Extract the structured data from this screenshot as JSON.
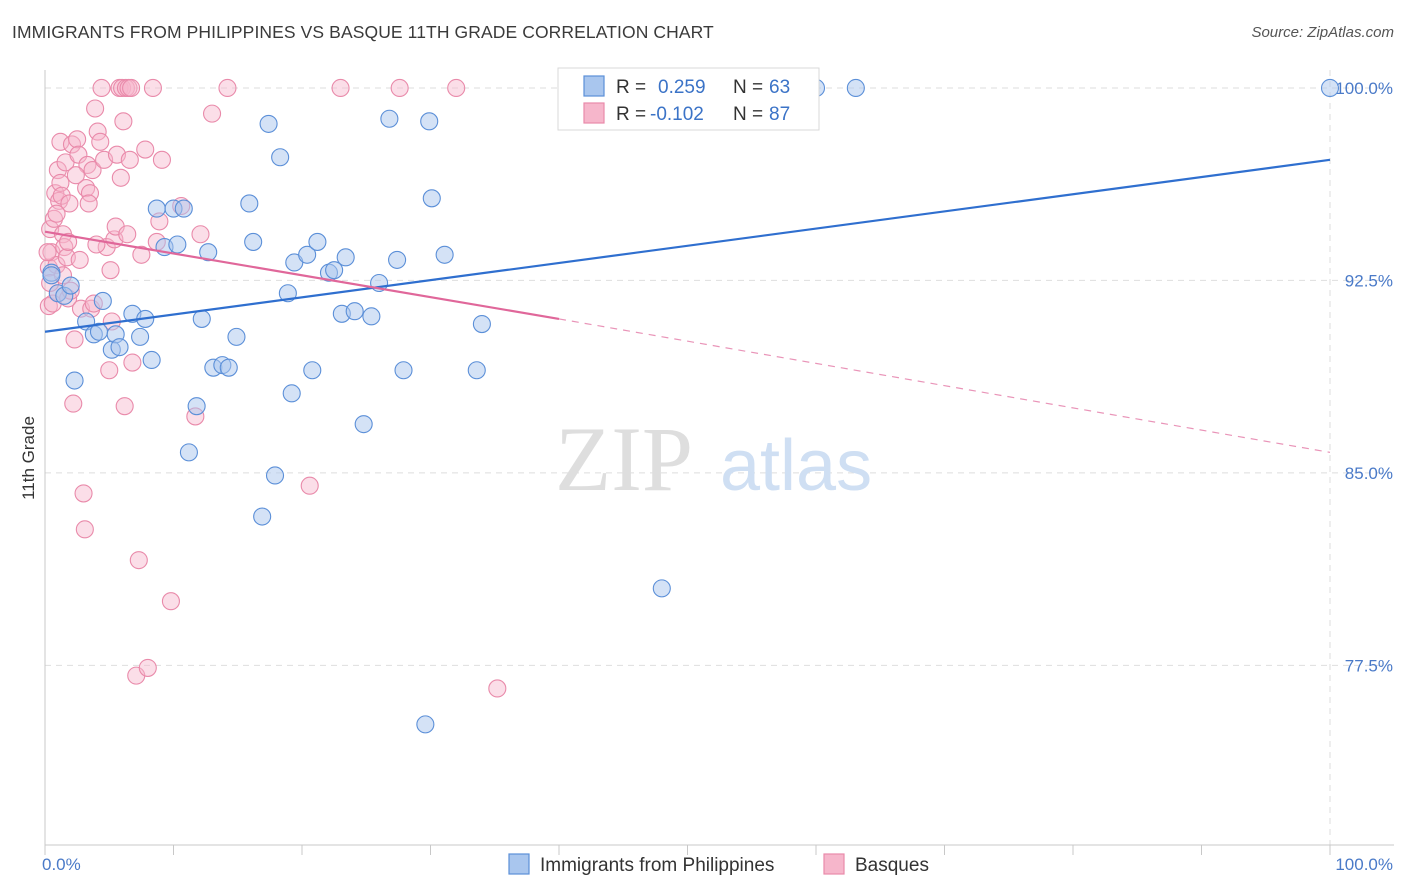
{
  "title": "IMMIGRANTS FROM PHILIPPINES VS BASQUE 11TH GRADE CORRELATION CHART",
  "source": "Source: ZipAtlas.com",
  "watermark": {
    "zip": "ZIP",
    "atlas": "atlas"
  },
  "colors": {
    "blue_fill": "#a9c6ee",
    "blue_stroke": "#5b8fd8",
    "blue_line": "#2f6fcf",
    "pink_fill": "#f6b6cb",
    "pink_stroke": "#e98aaa",
    "pink_line": "#e0679a",
    "grid": "#dedede",
    "tick_text": "#4a7ac8"
  },
  "legend": {
    "rows": [
      {
        "r_label": "R =",
        "r_value": "0.259",
        "n_label": "N =",
        "n_value": "63"
      },
      {
        "r_label": "R =",
        "r_value": "-0.102",
        "n_label": "N =",
        "n_value": "87"
      }
    ]
  },
  "chart_data": {
    "type": "scatter",
    "title": "IMMIGRANTS FROM PHILIPPINES VS BASQUE 11TH GRADE CORRELATION CHART",
    "xlabel": "",
    "ylabel": "11th Grade",
    "xlim": [
      0,
      100
    ],
    "ylim": [
      70.5,
      100.7
    ],
    "x_tick_labels": [
      "0.0%",
      "100.0%"
    ],
    "y_ticks": [
      77.5,
      85.0,
      92.5,
      100.0
    ],
    "y_tick_labels": [
      "77.5%",
      "85.0%",
      "92.5%",
      "100.0%"
    ],
    "grid": true,
    "legend_position": "top-center",
    "series": [
      {
        "name": "Immigrants from Philippines",
        "r": 0.259,
        "n": 63,
        "trend": {
          "x0": 0,
          "y0": 90.5,
          "x1": 100,
          "y1": 97.2
        },
        "points": [
          [
            0.5,
            92.8
          ],
          [
            0.5,
            92.7
          ],
          [
            1.0,
            92.0
          ],
          [
            1.5,
            91.9
          ],
          [
            2.0,
            92.3
          ],
          [
            2.3,
            88.6
          ],
          [
            3.2,
            90.9
          ],
          [
            3.8,
            90.4
          ],
          [
            4.2,
            90.5
          ],
          [
            4.5,
            91.7
          ],
          [
            5.2,
            89.8
          ],
          [
            5.5,
            90.4
          ],
          [
            5.8,
            89.9
          ],
          [
            6.8,
            91.2
          ],
          [
            7.4,
            90.3
          ],
          [
            7.8,
            91.0
          ],
          [
            8.3,
            89.4
          ],
          [
            8.7,
            95.3
          ],
          [
            9.3,
            93.8
          ],
          [
            10.0,
            95.3
          ],
          [
            10.3,
            93.9
          ],
          [
            10.8,
            95.3
          ],
          [
            11.2,
            85.8
          ],
          [
            11.8,
            87.6
          ],
          [
            12.2,
            91.0
          ],
          [
            12.7,
            93.6
          ],
          [
            13.1,
            89.1
          ],
          [
            13.8,
            89.2
          ],
          [
            14.3,
            89.1
          ],
          [
            14.9,
            90.3
          ],
          [
            15.9,
            95.5
          ],
          [
            16.2,
            94.0
          ],
          [
            16.9,
            83.3
          ],
          [
            17.4,
            98.6
          ],
          [
            17.9,
            84.9
          ],
          [
            18.3,
            97.3
          ],
          [
            18.9,
            92.0
          ],
          [
            19.4,
            93.2
          ],
          [
            19.2,
            88.1
          ],
          [
            20.4,
            93.5
          ],
          [
            20.8,
            89.0
          ],
          [
            21.2,
            94.0
          ],
          [
            22.1,
            92.8
          ],
          [
            22.5,
            92.9
          ],
          [
            23.1,
            91.2
          ],
          [
            23.4,
            93.4
          ],
          [
            24.1,
            91.3
          ],
          [
            24.8,
            86.9
          ],
          [
            25.4,
            91.1
          ],
          [
            26.0,
            92.4
          ],
          [
            26.8,
            98.8
          ],
          [
            27.4,
            93.3
          ],
          [
            27.9,
            89.0
          ],
          [
            29.6,
            75.2
          ],
          [
            29.9,
            98.7
          ],
          [
            30.1,
            95.7
          ],
          [
            31.1,
            93.5
          ],
          [
            33.6,
            89.0
          ],
          [
            34.0,
            90.8
          ],
          [
            48.0,
            80.5
          ],
          [
            60.0,
            100.0
          ],
          [
            63.1,
            100.0
          ],
          [
            100.0,
            100.0
          ]
        ]
      },
      {
        "name": "Basques",
        "r": -0.102,
        "n": 87,
        "trend": {
          "x0": 0,
          "y0": 94.4,
          "x1": 40,
          "y1": 91.0,
          "dash_x1": 100,
          "dash_y1": 85.8
        },
        "points": [
          [
            0.3,
            91.5
          ],
          [
            0.3,
            93.0
          ],
          [
            0.4,
            94.5
          ],
          [
            0.5,
            93.6
          ],
          [
            0.6,
            91.6
          ],
          [
            0.7,
            94.9
          ],
          [
            0.8,
            95.9
          ],
          [
            0.9,
            93.1
          ],
          [
            1.0,
            96.8
          ],
          [
            1.0,
            92.0
          ],
          [
            1.1,
            95.6
          ],
          [
            1.2,
            96.3
          ],
          [
            1.2,
            97.9
          ],
          [
            1.3,
            95.8
          ],
          [
            1.4,
            94.3
          ],
          [
            1.5,
            93.8
          ],
          [
            1.6,
            97.1
          ],
          [
            1.7,
            93.4
          ],
          [
            1.8,
            91.8
          ],
          [
            1.9,
            95.5
          ],
          [
            2.0,
            92.1
          ],
          [
            2.1,
            97.8
          ],
          [
            2.2,
            87.7
          ],
          [
            2.3,
            90.2
          ],
          [
            2.5,
            98.0
          ],
          [
            2.6,
            97.4
          ],
          [
            2.7,
            93.3
          ],
          [
            2.8,
            91.4
          ],
          [
            3.0,
            84.2
          ],
          [
            3.1,
            82.8
          ],
          [
            3.2,
            96.1
          ],
          [
            3.3,
            97.0
          ],
          [
            3.5,
            95.9
          ],
          [
            3.6,
            91.4
          ],
          [
            3.7,
            96.8
          ],
          [
            3.8,
            91.6
          ],
          [
            3.9,
            99.2
          ],
          [
            4.1,
            98.3
          ],
          [
            4.3,
            97.9
          ],
          [
            4.4,
            100.0
          ],
          [
            4.6,
            97.2
          ],
          [
            4.8,
            93.8
          ],
          [
            5.0,
            89.0
          ],
          [
            5.2,
            90.9
          ],
          [
            5.4,
            94.1
          ],
          [
            5.5,
            94.6
          ],
          [
            5.6,
            97.4
          ],
          [
            5.8,
            100.0
          ],
          [
            5.9,
            96.5
          ],
          [
            6.0,
            100.0
          ],
          [
            6.1,
            98.7
          ],
          [
            6.2,
            87.6
          ],
          [
            6.3,
            100.0
          ],
          [
            6.4,
            94.3
          ],
          [
            6.5,
            100.0
          ],
          [
            6.6,
            97.2
          ],
          [
            6.7,
            100.0
          ],
          [
            6.8,
            89.3
          ],
          [
            7.1,
            77.1
          ],
          [
            7.3,
            81.6
          ],
          [
            7.5,
            93.5
          ],
          [
            7.8,
            97.6
          ],
          [
            8.0,
            77.4
          ],
          [
            8.4,
            100.0
          ],
          [
            8.7,
            94.0
          ],
          [
            8.9,
            94.8
          ],
          [
            9.1,
            97.2
          ],
          [
            9.8,
            80.0
          ],
          [
            10.6,
            95.4
          ],
          [
            11.7,
            87.2
          ],
          [
            12.1,
            94.3
          ],
          [
            13.0,
            99.0
          ],
          [
            14.2,
            100.0
          ],
          [
            20.6,
            84.5
          ],
          [
            23.0,
            100.0
          ],
          [
            27.6,
            100.0
          ],
          [
            32.0,
            100.0
          ],
          [
            35.2,
            76.6
          ],
          [
            0.2,
            93.6
          ],
          [
            0.4,
            92.4
          ],
          [
            1.8,
            94.0
          ],
          [
            2.4,
            96.6
          ],
          [
            3.4,
            95.5
          ],
          [
            4.0,
            93.9
          ],
          [
            5.1,
            92.9
          ],
          [
            0.9,
            95.1
          ],
          [
            1.4,
            92.7
          ]
        ]
      }
    ]
  }
}
